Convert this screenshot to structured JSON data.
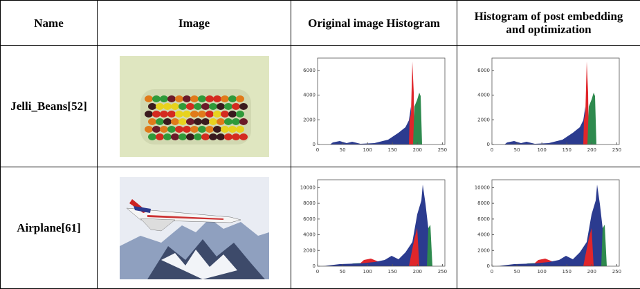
{
  "table": {
    "header": [
      "Name",
      "Image",
      "Original image Histogram",
      "Histogram of post embedding and optimization"
    ],
    "rows": [
      {
        "name": "Jelli_Beans[52]",
        "histograms": [
          {
            "xlim": [
              0,
              255
            ],
            "ylim": [
              0,
              7000
            ],
            "xticks": [
              0,
              50,
              100,
              150,
              200,
              250
            ],
            "yticks": [
              0,
              2000,
              4000,
              6000
            ]
          },
          {
            "xlim": [
              0,
              255
            ],
            "ylim": [
              0,
              7000
            ],
            "xticks": [
              0,
              50,
              100,
              150,
              200,
              250
            ],
            "yticks": [
              0,
              2000,
              4000,
              6000
            ]
          }
        ]
      },
      {
        "name": "Airplane[61]",
        "histograms": [
          {
            "xlim": [
              0,
              255
            ],
            "ylim": [
              0,
              11000
            ],
            "xticks": [
              0,
              50,
              100,
              150,
              200,
              250
            ],
            "yticks": [
              0,
              2000,
              4000,
              6000,
              8000,
              10000
            ]
          },
          {
            "xlim": [
              0,
              255
            ],
            "ylim": [
              0,
              11000
            ],
            "xticks": [
              0,
              50,
              100,
              150,
              200,
              250
            ],
            "yticks": [
              0,
              2000,
              4000,
              6000,
              8000,
              10000
            ]
          }
        ]
      }
    ]
  }
}
